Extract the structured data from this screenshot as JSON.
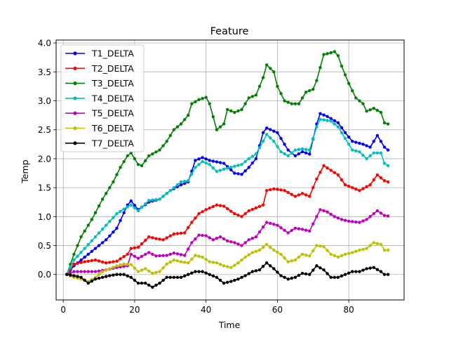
{
  "chart_data": {
    "type": "line",
    "title": "Feature",
    "xlabel": "Time",
    "ylabel": "Temp",
    "xlim": [
      -2,
      95.5
    ],
    "ylim": [
      -0.44,
      4.05
    ],
    "xticks": [
      0,
      20,
      40,
      60,
      80
    ],
    "yticks": [
      0.0,
      0.5,
      1.0,
      1.5,
      2.0,
      2.5,
      3.0,
      3.5,
      4.0
    ],
    "xtick_labels": [
      "0",
      "20",
      "40",
      "60",
      "80"
    ],
    "ytick_labels": [
      "0.0",
      "0.5",
      "1.0",
      "1.5",
      "2.0",
      "2.5",
      "3.0",
      "3.5",
      "4.0"
    ],
    "grid": true,
    "legend_position": "upper-left",
    "series": [
      {
        "name": "T1_DELTA",
        "color": "#0000ff",
        "points": [
          [
            1,
            0
          ],
          [
            3,
            0.15
          ],
          [
            6,
            0.3
          ],
          [
            9,
            0.45
          ],
          [
            12,
            0.6
          ],
          [
            15,
            0.8
          ],
          [
            18,
            1.2
          ],
          [
            19,
            1.27
          ],
          [
            21,
            1.12
          ],
          [
            24,
            1.25
          ],
          [
            27,
            1.3
          ],
          [
            30,
            1.45
          ],
          [
            33,
            1.55
          ],
          [
            35,
            1.6
          ],
          [
            37,
            1.97
          ],
          [
            39,
            2.02
          ],
          [
            41,
            1.97
          ],
          [
            45,
            1.92
          ],
          [
            48,
            1.75
          ],
          [
            50,
            1.73
          ],
          [
            52,
            1.85
          ],
          [
            54,
            2.0
          ],
          [
            56,
            2.45
          ],
          [
            57,
            2.53
          ],
          [
            60,
            2.45
          ],
          [
            63,
            2.15
          ],
          [
            65,
            2.05
          ],
          [
            67,
            2.12
          ],
          [
            69,
            2.08
          ],
          [
            71,
            2.6
          ],
          [
            72,
            2.78
          ],
          [
            74,
            2.73
          ],
          [
            77,
            2.62
          ],
          [
            79,
            2.45
          ],
          [
            81,
            2.3
          ],
          [
            84,
            2.25
          ],
          [
            86,
            2.2
          ],
          [
            88,
            2.4
          ],
          [
            90,
            2.2
          ],
          [
            91,
            2.15
          ]
        ]
      },
      {
        "name": "T2_DELTA",
        "color": "#ff0000",
        "points": [
          [
            1,
            0
          ],
          [
            3,
            0.18
          ],
          [
            6,
            0.22
          ],
          [
            9,
            0.25
          ],
          [
            12,
            0.2
          ],
          [
            15,
            0.23
          ],
          [
            18,
            0.35
          ],
          [
            19,
            0.45
          ],
          [
            21,
            0.47
          ],
          [
            24,
            0.65
          ],
          [
            26,
            0.62
          ],
          [
            28,
            0.6
          ],
          [
            31,
            0.7
          ],
          [
            34,
            0.72
          ],
          [
            36,
            0.9
          ],
          [
            38,
            1.05
          ],
          [
            40,
            1.12
          ],
          [
            43,
            1.2
          ],
          [
            45,
            1.18
          ],
          [
            48,
            1.05
          ],
          [
            50,
            1.0
          ],
          [
            52,
            1.1
          ],
          [
            54,
            1.15
          ],
          [
            56,
            1.2
          ],
          [
            57,
            1.45
          ],
          [
            59,
            1.48
          ],
          [
            62,
            1.45
          ],
          [
            65,
            1.35
          ],
          [
            67,
            1.4
          ],
          [
            69,
            1.35
          ],
          [
            71,
            1.65
          ],
          [
            73,
            1.88
          ],
          [
            75,
            1.8
          ],
          [
            77,
            1.72
          ],
          [
            79,
            1.55
          ],
          [
            81,
            1.5
          ],
          [
            83,
            1.45
          ],
          [
            86,
            1.55
          ],
          [
            88,
            1.72
          ],
          [
            90,
            1.62
          ],
          [
            91,
            1.6
          ]
        ]
      },
      {
        "name": "T3_DELTA",
        "color": "#008000",
        "points": [
          [
            1,
            0
          ],
          [
            3,
            0.35
          ],
          [
            5,
            0.65
          ],
          [
            8,
            0.95
          ],
          [
            11,
            1.3
          ],
          [
            14,
            1.6
          ],
          [
            16,
            1.85
          ],
          [
            18,
            2.05
          ],
          [
            19,
            2.1
          ],
          [
            21,
            1.9
          ],
          [
            22,
            1.88
          ],
          [
            24,
            2.05
          ],
          [
            27,
            2.15
          ],
          [
            29,
            2.3
          ],
          [
            31,
            2.5
          ],
          [
            33,
            2.6
          ],
          [
            35,
            2.75
          ],
          [
            36,
            2.95
          ],
          [
            38,
            3.02
          ],
          [
            40,
            3.06
          ],
          [
            41,
            2.95
          ],
          [
            43,
            2.5
          ],
          [
            45,
            2.6
          ],
          [
            46,
            2.85
          ],
          [
            48,
            2.8
          ],
          [
            50,
            2.85
          ],
          [
            52,
            3.05
          ],
          [
            54,
            3.1
          ],
          [
            56,
            3.4
          ],
          [
            57,
            3.62
          ],
          [
            59,
            3.5
          ],
          [
            60,
            3.25
          ],
          [
            62,
            3.0
          ],
          [
            64,
            2.95
          ],
          [
            66,
            2.95
          ],
          [
            68,
            3.15
          ],
          [
            70,
            3.2
          ],
          [
            71,
            3.35
          ],
          [
            73,
            3.8
          ],
          [
            75,
            3.83
          ],
          [
            76,
            3.85
          ],
          [
            77,
            3.78
          ],
          [
            78,
            3.6
          ],
          [
            80,
            3.3
          ],
          [
            82,
            3.05
          ],
          [
            84,
            2.95
          ],
          [
            85,
            2.82
          ],
          [
            87,
            2.87
          ],
          [
            89,
            2.8
          ],
          [
            90,
            2.62
          ],
          [
            91,
            2.6
          ]
        ]
      },
      {
        "name": "T4_DELTA",
        "color": "#00bfbf",
        "points": [
          [
            1,
            0
          ],
          [
            3,
            0.25
          ],
          [
            6,
            0.45
          ],
          [
            9,
            0.65
          ],
          [
            12,
            0.85
          ],
          [
            15,
            1.05
          ],
          [
            18,
            1.17
          ],
          [
            19,
            1.2
          ],
          [
            21,
            1.1
          ],
          [
            24,
            1.28
          ],
          [
            27,
            1.3
          ],
          [
            30,
            1.45
          ],
          [
            33,
            1.6
          ],
          [
            35,
            1.62
          ],
          [
            37,
            1.85
          ],
          [
            39,
            1.95
          ],
          [
            41,
            1.9
          ],
          [
            43,
            1.78
          ],
          [
            45,
            1.82
          ],
          [
            48,
            1.87
          ],
          [
            50,
            1.9
          ],
          [
            52,
            2.0
          ],
          [
            54,
            2.08
          ],
          [
            56,
            2.3
          ],
          [
            57,
            2.42
          ],
          [
            59,
            2.3
          ],
          [
            61,
            2.12
          ],
          [
            63,
            2.05
          ],
          [
            65,
            2.15
          ],
          [
            67,
            2.17
          ],
          [
            69,
            2.15
          ],
          [
            71,
            2.55
          ],
          [
            72,
            2.68
          ],
          [
            75,
            2.65
          ],
          [
            77,
            2.55
          ],
          [
            79,
            2.35
          ],
          [
            81,
            2.15
          ],
          [
            83,
            2.12
          ],
          [
            85,
            2.0
          ],
          [
            87,
            2.1
          ],
          [
            89,
            2.1
          ],
          [
            90,
            1.92
          ],
          [
            91,
            1.88
          ]
        ]
      },
      {
        "name": "T5_DELTA",
        "color": "#bf00bf",
        "points": [
          [
            1,
            0
          ],
          [
            3,
            0.05
          ],
          [
            6,
            0.05
          ],
          [
            9,
            0.05
          ],
          [
            12,
            0.08
          ],
          [
            15,
            0.12
          ],
          [
            18,
            0.15
          ],
          [
            19,
            0.35
          ],
          [
            21,
            0.28
          ],
          [
            24,
            0.38
          ],
          [
            26,
            0.32
          ],
          [
            29,
            0.33
          ],
          [
            31,
            0.37
          ],
          [
            34,
            0.33
          ],
          [
            36,
            0.55
          ],
          [
            38,
            0.68
          ],
          [
            40,
            0.67
          ],
          [
            42,
            0.6
          ],
          [
            44,
            0.65
          ],
          [
            46,
            0.58
          ],
          [
            48,
            0.55
          ],
          [
            50,
            0.5
          ],
          [
            52,
            0.6
          ],
          [
            54,
            0.65
          ],
          [
            56,
            0.82
          ],
          [
            57,
            0.9
          ],
          [
            60,
            0.85
          ],
          [
            63,
            0.72
          ],
          [
            65,
            0.8
          ],
          [
            67,
            0.78
          ],
          [
            69,
            0.75
          ],
          [
            71,
            1.0
          ],
          [
            72,
            1.12
          ],
          [
            74,
            1.08
          ],
          [
            76,
            1.0
          ],
          [
            78,
            0.95
          ],
          [
            80,
            0.92
          ],
          [
            83,
            0.9
          ],
          [
            85,
            0.95
          ],
          [
            87,
            1.05
          ],
          [
            88,
            1.1
          ],
          [
            90,
            1.02
          ],
          [
            91,
            1.01
          ]
        ]
      },
      {
        "name": "T6_DELTA",
        "color": "#bfbf00",
        "points": [
          [
            1,
            0
          ],
          [
            3,
            -0.05
          ],
          [
            5,
            -0.08
          ],
          [
            7,
            -0.12
          ],
          [
            9,
            -0.05
          ],
          [
            11,
            0.05
          ],
          [
            13,
            0.1
          ],
          [
            15,
            0.15
          ],
          [
            17,
            0.18
          ],
          [
            19,
            0.17
          ],
          [
            21,
            0.05
          ],
          [
            23,
            0.1
          ],
          [
            25,
            0.02
          ],
          [
            27,
            0.05
          ],
          [
            29,
            0.18
          ],
          [
            31,
            0.25
          ],
          [
            33,
            0.22
          ],
          [
            35,
            0.2
          ],
          [
            37,
            0.33
          ],
          [
            39,
            0.3
          ],
          [
            41,
            0.22
          ],
          [
            43,
            0.2
          ],
          [
            45,
            0.15
          ],
          [
            47,
            0.12
          ],
          [
            49,
            0.2
          ],
          [
            51,
            0.3
          ],
          [
            53,
            0.38
          ],
          [
            55,
            0.42
          ],
          [
            57,
            0.52
          ],
          [
            59,
            0.42
          ],
          [
            61,
            0.35
          ],
          [
            63,
            0.22
          ],
          [
            65,
            0.25
          ],
          [
            67,
            0.35
          ],
          [
            69,
            0.32
          ],
          [
            71,
            0.5
          ],
          [
            73,
            0.48
          ],
          [
            75,
            0.35
          ],
          [
            77,
            0.3
          ],
          [
            79,
            0.35
          ],
          [
            81,
            0.38
          ],
          [
            83,
            0.42
          ],
          [
            85,
            0.45
          ],
          [
            87,
            0.55
          ],
          [
            89,
            0.52
          ],
          [
            90,
            0.42
          ],
          [
            91,
            0.42
          ]
        ]
      },
      {
        "name": "T7_DELTA",
        "color": "#000000",
        "points": [
          [
            1,
            0
          ],
          [
            3,
            -0.02
          ],
          [
            5,
            -0.05
          ],
          [
            7,
            -0.15
          ],
          [
            9,
            -0.08
          ],
          [
            11,
            -0.05
          ],
          [
            13,
            -0.02
          ],
          [
            15,
            0.0
          ],
          [
            17,
            0.0
          ],
          [
            19,
            -0.05
          ],
          [
            21,
            -0.15
          ],
          [
            23,
            -0.15
          ],
          [
            25,
            -0.22
          ],
          [
            27,
            -0.15
          ],
          [
            29,
            -0.05
          ],
          [
            31,
            -0.05
          ],
          [
            33,
            -0.05
          ],
          [
            35,
            0.0
          ],
          [
            37,
            0.05
          ],
          [
            39,
            0.05
          ],
          [
            41,
            0.0
          ],
          [
            43,
            -0.05
          ],
          [
            45,
            -0.15
          ],
          [
            47,
            -0.12
          ],
          [
            49,
            -0.08
          ],
          [
            51,
            -0.02
          ],
          [
            53,
            0.05
          ],
          [
            55,
            0.08
          ],
          [
            57,
            0.2
          ],
          [
            59,
            0.1
          ],
          [
            61,
            -0.02
          ],
          [
            63,
            -0.08
          ],
          [
            65,
            -0.05
          ],
          [
            67,
            0.02
          ],
          [
            69,
            0.0
          ],
          [
            71,
            0.15
          ],
          [
            73,
            0.08
          ],
          [
            75,
            -0.05
          ],
          [
            77,
            -0.05
          ],
          [
            79,
            0.0
          ],
          [
            81,
            0.05
          ],
          [
            83,
            0.05
          ],
          [
            85,
            0.1
          ],
          [
            87,
            0.12
          ],
          [
            89,
            0.05
          ],
          [
            90,
            0.0
          ],
          [
            91,
            0.0
          ]
        ]
      }
    ]
  }
}
